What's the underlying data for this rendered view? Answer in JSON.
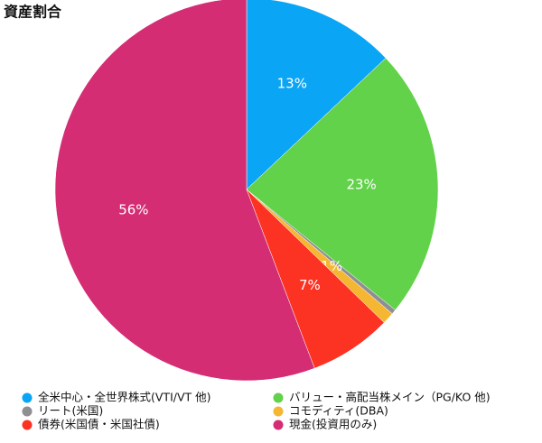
{
  "chart_data": {
    "type": "pie",
    "title": "資産割合",
    "categories": [
      "全米中心・全世界株式(VTI/VT 他)",
      "バリュー・高配当株メイン（PG/KO 他)",
      "リート(米国)",
      "コモディティ(DBA)",
      "債券(米国債・米国社債)",
      "現金(投資用のみ)"
    ],
    "values": [
      13,
      23,
      0.4,
      1,
      7,
      56
    ],
    "value_labels": [
      "13%",
      "23%",
      null,
      "1%",
      "7%",
      "56%"
    ],
    "colors": [
      "#0aa5f5",
      "#62d24a",
      "#8e8e93",
      "#f5b731",
      "#fc3223",
      "#d42d74"
    ]
  }
}
